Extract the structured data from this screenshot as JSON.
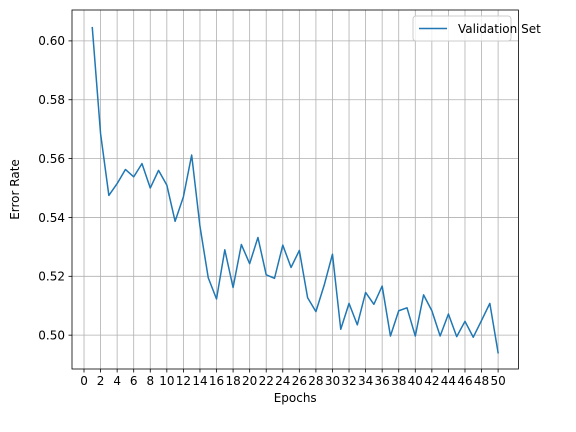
{
  "chart_data": {
    "type": "line",
    "xlabel": "Epochs",
    "ylabel": "Error Rate",
    "xlim": [
      -1.45,
      52.45
    ],
    "ylim": [
      0.4885,
      0.6105
    ],
    "xticks": [
      0,
      2,
      4,
      6,
      8,
      10,
      12,
      14,
      16,
      18,
      20,
      22,
      24,
      26,
      28,
      30,
      32,
      34,
      36,
      38,
      40,
      42,
      44,
      46,
      48,
      50
    ],
    "yticks": [
      0.5,
      0.52,
      0.54,
      0.56,
      0.58,
      0.6
    ],
    "ytick_labels": [
      "0.50",
      "0.52",
      "0.54",
      "0.56",
      "0.58",
      "0.60"
    ],
    "grid": true,
    "legend_position": "upper-right",
    "series": [
      {
        "name": "Validation Set",
        "color": "#1f77b4",
        "x": [
          1,
          2,
          3,
          4,
          5,
          6,
          7,
          8,
          9,
          10,
          11,
          12,
          13,
          14,
          15,
          16,
          17,
          18,
          19,
          20,
          21,
          22,
          23,
          24,
          25,
          26,
          27,
          28,
          29,
          30,
          31,
          32,
          33,
          34,
          35,
          36,
          37,
          38,
          39,
          40,
          41,
          42,
          43,
          44,
          45,
          46,
          47,
          48,
          49,
          50
        ],
        "y": [
          0.6045,
          0.5685,
          0.5475,
          0.5515,
          0.5563,
          0.5538,
          0.5583,
          0.55,
          0.556,
          0.551,
          0.5387,
          0.547,
          0.5612,
          0.537,
          0.5195,
          0.5123,
          0.529,
          0.5162,
          0.5308,
          0.5243,
          0.5332,
          0.5205,
          0.5193,
          0.5306,
          0.523,
          0.5288,
          0.5127,
          0.508,
          0.517,
          0.5275,
          0.502,
          0.5108,
          0.5035,
          0.5145,
          0.5105,
          0.5167,
          0.4997,
          0.5083,
          0.5093,
          0.4997,
          0.5137,
          0.5083,
          0.4997,
          0.5072,
          0.4995,
          0.5047,
          0.4993,
          0.505,
          0.5108,
          0.494
        ]
      }
    ]
  }
}
